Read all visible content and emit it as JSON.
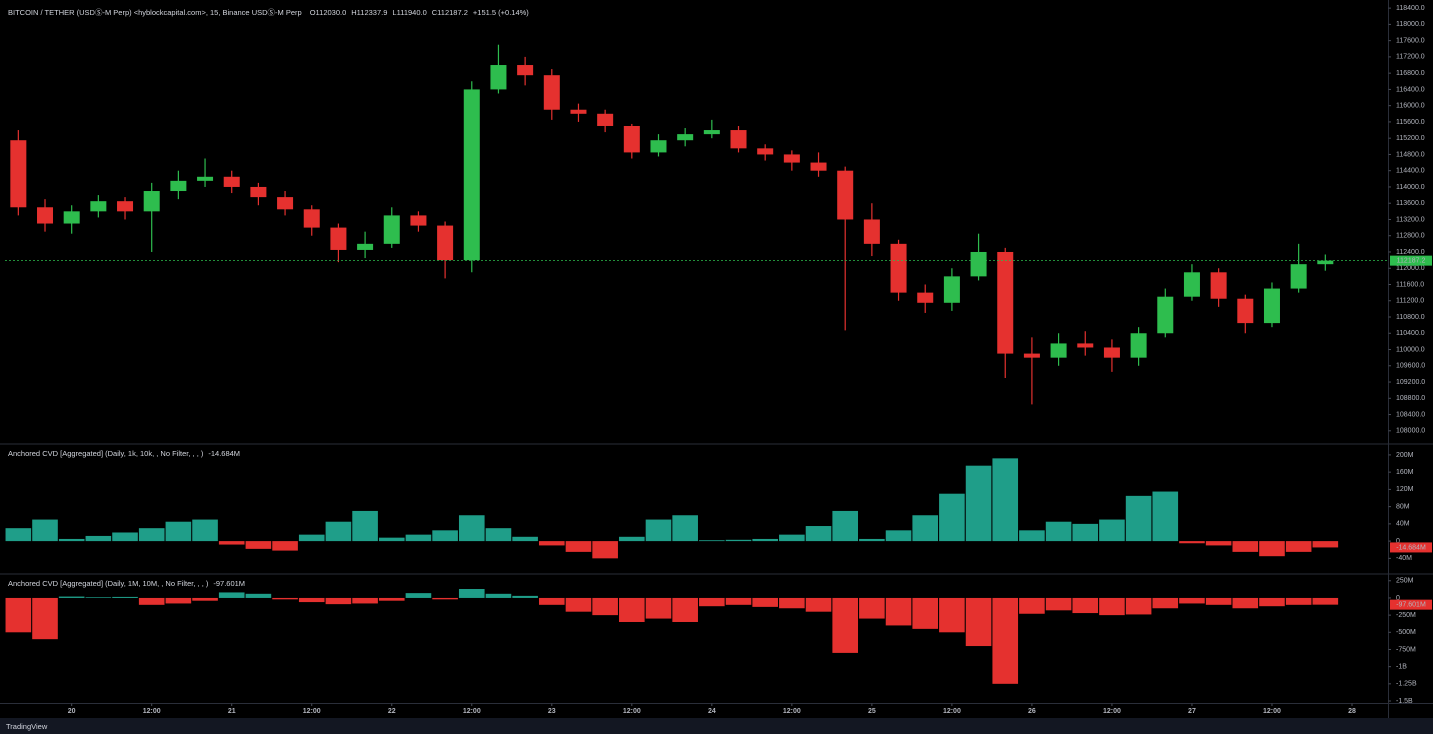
{
  "chart_data": [
    {
      "type": "candlestick",
      "title": "BITCOIN / TETHER (USDⓈ-M Perp) <hyblockcapital.com>, 15, Binance USDⓈ-M Perp",
      "ohlc_labels": [
        "O112030.0",
        "H112337.9",
        "L111940.0",
        "C112187.2"
      ],
      "change_label": "+151.5 (+0.14%)",
      "up_color": "#2ebd4e",
      "down_color": "#e5312f",
      "x": [
        -8,
        -4,
        0,
        4,
        8,
        12,
        16,
        20,
        24,
        28,
        32,
        36,
        40,
        44,
        48,
        52,
        56,
        60,
        64,
        68,
        72,
        76,
        80,
        84,
        88,
        92,
        96,
        100,
        104,
        108,
        112,
        116,
        120,
        124,
        128,
        132,
        136,
        140,
        144,
        148,
        152,
        156,
        160,
        164,
        168,
        172,
        176,
        180,
        184,
        188
      ],
      "open": [
        115150,
        113500,
        113100,
        113400,
        113650,
        113400,
        113900,
        114150,
        114250,
        114000,
        113750,
        113450,
        113000,
        112450,
        112600,
        113300,
        113050,
        112200,
        116400,
        117000,
        116750,
        115900,
        115800,
        115500,
        114850,
        115150,
        115300,
        115400,
        114950,
        114800,
        114600,
        114400,
        113200,
        112600,
        111400,
        111150,
        111800,
        112400,
        109900,
        109800,
        110150,
        110050,
        109800,
        110400,
        111300,
        111900,
        111250,
        110650,
        111500,
        112100
      ],
      "high": [
        115400,
        113700,
        113550,
        113800,
        113750,
        114100,
        114400,
        114700,
        114400,
        114100,
        113900,
        113550,
        113100,
        112900,
        113500,
        113400,
        113150,
        116600,
        117500,
        117200,
        116900,
        116050,
        115900,
        115550,
        115300,
        115450,
        115650,
        115500,
        115050,
        114900,
        114850,
        114500,
        113600,
        112700,
        111600,
        112000,
        112850,
        112500,
        110300,
        110400,
        110450,
        110250,
        110550,
        111500,
        112100,
        112000,
        111350,
        111650,
        112600,
        112337.9
      ],
      "low": [
        113300,
        112900,
        112850,
        113250,
        113200,
        112400,
        113700,
        114000,
        113850,
        113550,
        113300,
        112800,
        112150,
        112250,
        112500,
        112900,
        111750,
        111900,
        116300,
        116500,
        115650,
        115600,
        115350,
        114700,
        114750,
        115000,
        115200,
        114850,
        114650,
        114400,
        114250,
        110470,
        112300,
        111200,
        110900,
        110950,
        111700,
        109300,
        108650,
        109600,
        109850,
        109450,
        109600,
        110300,
        111200,
        111050,
        110400,
        110550,
        111400,
        111940
      ],
      "close": [
        113500,
        113100,
        113400,
        113650,
        113400,
        113900,
        114150,
        114250,
        114000,
        113750,
        113450,
        113000,
        112450,
        112600,
        113300,
        113050,
        112200,
        116400,
        117000,
        116750,
        115900,
        115800,
        115500,
        114850,
        115150,
        115300,
        115400,
        114950,
        114800,
        114600,
        114400,
        113200,
        112600,
        111400,
        111150,
        111800,
        112400,
        109900,
        109800,
        110150,
        110050,
        109800,
        110400,
        111300,
        111900,
        111250,
        110650,
        111500,
        112100,
        112187.2
      ],
      "xlim": [
        -10,
        197.4
      ],
      "xticks": [
        {
          "value": 0,
          "label": "20"
        },
        {
          "value": 12,
          "label": "12:00"
        },
        {
          "value": 24,
          "label": "21"
        },
        {
          "value": 36,
          "label": "12:00"
        },
        {
          "value": 48,
          "label": "22"
        },
        {
          "value": 60,
          "label": "12:00"
        },
        {
          "value": 72,
          "label": "23"
        },
        {
          "value": 84,
          "label": "12:00"
        },
        {
          "value": 96,
          "label": "24"
        },
        {
          "value": 108,
          "label": "12:00"
        },
        {
          "value": 120,
          "label": "25"
        },
        {
          "value": 132,
          "label": "12:00"
        },
        {
          "value": 144,
          "label": "26"
        },
        {
          "value": 156,
          "label": "12:00"
        },
        {
          "value": 168,
          "label": "27"
        },
        {
          "value": 180,
          "label": "12:00"
        },
        {
          "value": 192,
          "label": "28"
        }
      ],
      "ylim": [
        107700,
        118600
      ],
      "yticks": [
        {
          "value": 118400,
          "label": "118400.0"
        },
        {
          "value": 118000,
          "label": "118000.0"
        },
        {
          "value": 117600,
          "label": "117600.0"
        },
        {
          "value": 117200,
          "label": "117200.0"
        },
        {
          "value": 116800,
          "label": "116800.0"
        },
        {
          "value": 116400,
          "label": "116400.0"
        },
        {
          "value": 116000,
          "label": "116000.0"
        },
        {
          "value": 115600,
          "label": "115600.0"
        },
        {
          "value": 115200,
          "label": "115200.0"
        },
        {
          "value": 114800,
          "label": "114800.0"
        },
        {
          "value": 114400,
          "label": "114400.0"
        },
        {
          "value": 114000,
          "label": "114000.0"
        },
        {
          "value": 113600,
          "label": "113600.0"
        },
        {
          "value": 113200,
          "label": "113200.0"
        },
        {
          "value": 112800,
          "label": "112800.0"
        },
        {
          "value": 112400,
          "label": "112400.0"
        },
        {
          "value": 112000,
          "label": "112000.0"
        },
        {
          "value": 111600,
          "label": "111600.0"
        },
        {
          "value": 111200,
          "label": "111200.0"
        },
        {
          "value": 110800,
          "label": "110800.0"
        },
        {
          "value": 110400,
          "label": "110400.0"
        },
        {
          "value": 110000,
          "label": "110000.0"
        },
        {
          "value": 109600,
          "label": "109600.0"
        },
        {
          "value": 109200,
          "label": "109200.0"
        },
        {
          "value": 108800,
          "label": "108800.0"
        },
        {
          "value": 108400,
          "label": "108400.0"
        },
        {
          "value": 108000,
          "label": "108000.0"
        }
      ]
    },
    {
      "type": "bar",
      "title": "Anchored CVD [Aggregated] (Daily, 1k, 10k, , No Filter, , , )",
      "last_label": "-14.684M",
      "up_color": "#1f9e89",
      "down_color": "#e5312f",
      "x": [
        -8,
        -4,
        0,
        4,
        8,
        12,
        16,
        20,
        24,
        28,
        32,
        36,
        40,
        44,
        48,
        52,
        56,
        60,
        64,
        68,
        72,
        76,
        80,
        84,
        88,
        92,
        96,
        100,
        104,
        108,
        112,
        116,
        120,
        124,
        128,
        132,
        136,
        140,
        144,
        148,
        152,
        156,
        160,
        164,
        168,
        172,
        176,
        180,
        184,
        188
      ],
      "values": [
        30,
        50,
        5,
        12,
        20,
        30,
        45,
        50,
        -8,
        -18,
        -22,
        15,
        45,
        70,
        8,
        15,
        25,
        60,
        30,
        10,
        -10,
        -25,
        -40,
        10,
        50,
        60,
        2,
        3,
        5,
        15,
        35,
        70,
        5,
        25,
        60,
        110,
        175,
        192,
        25,
        45,
        40,
        50,
        105,
        115,
        -5,
        -10,
        -25,
        -35,
        -25,
        -14.684
      ],
      "ylim": [
        -74,
        223
      ],
      "yticks": [
        {
          "value": 200,
          "label": "200M"
        },
        {
          "value": 160,
          "label": "160M"
        },
        {
          "value": 120,
          "label": "120M"
        },
        {
          "value": 80,
          "label": "80M"
        },
        {
          "value": 40,
          "label": "40M"
        },
        0,
        {
          "value": -40,
          "label": "-40M"
        }
      ]
    },
    {
      "type": "bar",
      "title": "Anchored CVD [Aggregated] (Daily, 1M, 10M, , No Filter, , , )",
      "last_label": "-97.601M",
      "up_color": "#1f9e89",
      "down_color": "#e5312f",
      "x": [
        -8,
        -4,
        0,
        4,
        8,
        12,
        16,
        20,
        24,
        28,
        32,
        36,
        40,
        44,
        48,
        52,
        56,
        60,
        64,
        68,
        72,
        76,
        80,
        84,
        88,
        92,
        96,
        100,
        104,
        108,
        112,
        116,
        120,
        124,
        128,
        132,
        136,
        140,
        144,
        148,
        152,
        156,
        160,
        164,
        168,
        172,
        176,
        180,
        184,
        188
      ],
      "values": [
        -500,
        -600,
        20,
        10,
        15,
        -100,
        -80,
        -40,
        80,
        60,
        -20,
        -60,
        -90,
        -80,
        -40,
        70,
        -20,
        130,
        60,
        30,
        -100,
        -200,
        -250,
        -350,
        -300,
        -350,
        -120,
        -100,
        -130,
        -150,
        -200,
        -800,
        -300,
        -400,
        -450,
        -500,
        -700,
        -1250,
        -230,
        -180,
        -220,
        -250,
        -240,
        -150,
        -80,
        -100,
        -150,
        -120,
        -100,
        -97.601
      ],
      "ylim": [
        -1529,
        334
      ],
      "yticks": [
        {
          "value": 250,
          "label": "250M"
        },
        0,
        {
          "value": -250,
          "label": "-250M"
        },
        {
          "value": -500,
          "label": "-500M"
        },
        {
          "value": -750,
          "label": "-750M"
        },
        {
          "value": -1000,
          "label": "-1B"
        },
        {
          "value": -1250,
          "label": "-1.25B"
        },
        {
          "value": -1500,
          "label": "-1.5B"
        }
      ]
    }
  ],
  "footer": "TradingView"
}
